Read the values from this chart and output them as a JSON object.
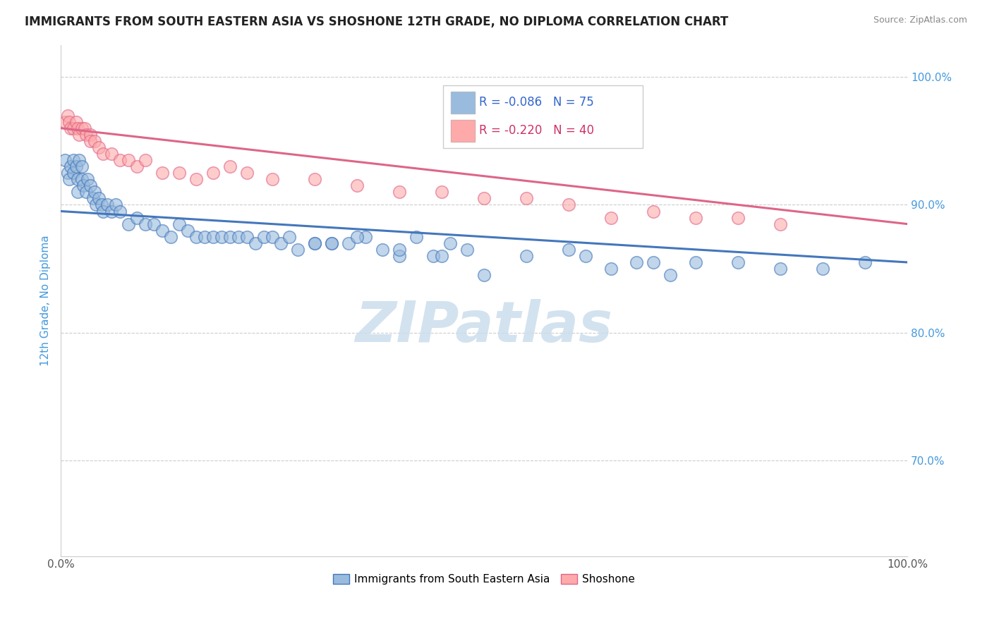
{
  "title": "IMMIGRANTS FROM SOUTH EASTERN ASIA VS SHOSHONE 12TH GRADE, NO DIPLOMA CORRELATION CHART",
  "source": "Source: ZipAtlas.com",
  "ylabel": "12th Grade, No Diploma",
  "legend_labels": [
    "Immigrants from South Eastern Asia",
    "Shoshone"
  ],
  "legend_r1": "-0.086",
  "legend_n1": "75",
  "legend_r2": "-0.220",
  "legend_n2": "40",
  "color_blue": "#99BBDD",
  "color_pink": "#FFAAAA",
  "line_blue": "#4477BB",
  "line_pink": "#DD6688",
  "xlim": [
    0.0,
    1.0
  ],
  "ylim": [
    0.625,
    1.025
  ],
  "ytick_right": [
    0.7,
    0.8,
    0.9,
    1.0
  ],
  "ytick_right_labels": [
    "70.0%",
    "80.0%",
    "90.0%",
    "100.0%"
  ],
  "watermark": "ZIPatlas",
  "watermark_color": "#CCDDED",
  "blue_x": [
    0.005,
    0.008,
    0.01,
    0.012,
    0.015,
    0.015,
    0.018,
    0.02,
    0.02,
    0.022,
    0.025,
    0.025,
    0.027,
    0.03,
    0.032,
    0.035,
    0.038,
    0.04,
    0.042,
    0.045,
    0.048,
    0.05,
    0.055,
    0.06,
    0.065,
    0.07,
    0.08,
    0.09,
    0.1,
    0.11,
    0.12,
    0.13,
    0.14,
    0.15,
    0.16,
    0.17,
    0.18,
    0.19,
    0.2,
    0.21,
    0.22,
    0.23,
    0.24,
    0.25,
    0.26,
    0.27,
    0.28,
    0.3,
    0.32,
    0.34,
    0.36,
    0.38,
    0.4,
    0.42,
    0.44,
    0.46,
    0.48,
    0.3,
    0.32,
    0.35,
    0.4,
    0.45,
    0.5,
    0.55,
    0.6,
    0.62,
    0.65,
    0.68,
    0.7,
    0.72,
    0.75,
    0.8,
    0.85,
    0.9,
    0.95
  ],
  "blue_y": [
    0.935,
    0.925,
    0.92,
    0.93,
    0.935,
    0.925,
    0.93,
    0.92,
    0.91,
    0.935,
    0.93,
    0.92,
    0.915,
    0.91,
    0.92,
    0.915,
    0.905,
    0.91,
    0.9,
    0.905,
    0.9,
    0.895,
    0.9,
    0.895,
    0.9,
    0.895,
    0.885,
    0.89,
    0.885,
    0.885,
    0.88,
    0.875,
    0.885,
    0.88,
    0.875,
    0.875,
    0.875,
    0.875,
    0.875,
    0.875,
    0.875,
    0.87,
    0.875,
    0.875,
    0.87,
    0.875,
    0.865,
    0.87,
    0.87,
    0.87,
    0.875,
    0.865,
    0.86,
    0.875,
    0.86,
    0.87,
    0.865,
    0.87,
    0.87,
    0.875,
    0.865,
    0.86,
    0.845,
    0.86,
    0.865,
    0.86,
    0.85,
    0.855,
    0.855,
    0.845,
    0.855,
    0.855,
    0.85,
    0.85,
    0.855
  ],
  "pink_x": [
    0.005,
    0.008,
    0.01,
    0.012,
    0.015,
    0.018,
    0.02,
    0.022,
    0.025,
    0.028,
    0.03,
    0.035,
    0.035,
    0.04,
    0.045,
    0.05,
    0.06,
    0.07,
    0.08,
    0.09,
    0.1,
    0.12,
    0.14,
    0.16,
    0.18,
    0.2,
    0.22,
    0.25,
    0.3,
    0.35,
    0.4,
    0.45,
    0.5,
    0.55,
    0.6,
    0.65,
    0.7,
    0.75,
    0.8,
    0.85
  ],
  "pink_y": [
    0.965,
    0.97,
    0.965,
    0.96,
    0.96,
    0.965,
    0.96,
    0.955,
    0.96,
    0.96,
    0.955,
    0.955,
    0.95,
    0.95,
    0.945,
    0.94,
    0.94,
    0.935,
    0.935,
    0.93,
    0.935,
    0.925,
    0.925,
    0.92,
    0.925,
    0.93,
    0.925,
    0.92,
    0.92,
    0.915,
    0.91,
    0.91,
    0.905,
    0.905,
    0.9,
    0.89,
    0.895,
    0.89,
    0.89,
    0.885
  ],
  "blue_trend_x": [
    0.0,
    1.0
  ],
  "blue_trend_y": [
    0.895,
    0.855
  ],
  "pink_trend_x": [
    0.0,
    1.0
  ],
  "pink_trend_y": [
    0.96,
    0.885
  ]
}
